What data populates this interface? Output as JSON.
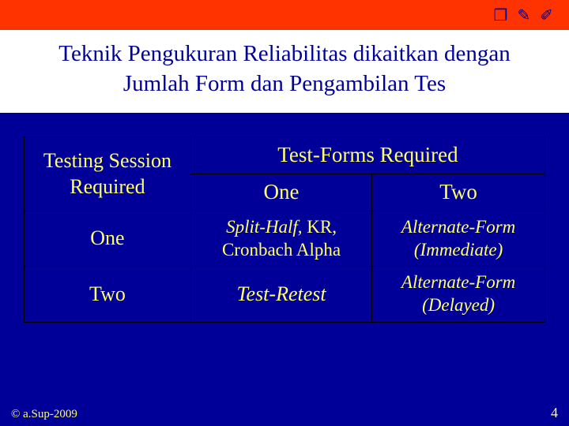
{
  "slide": {
    "title": "Teknik Pengukuran Reliabilitas dikaitkan dengan Jumlah Form dan Pengambilan Tes"
  },
  "topIcons": {
    "i1": "❒",
    "i2": "✎",
    "i3": "✐"
  },
  "table": {
    "rowHeader": "Testing Session Required",
    "colHeader": "Test-Forms Required",
    "subOne": "One",
    "subTwo": "Two",
    "rowOne": "One",
    "rowTwo": "Two",
    "cell_1_1a": "Split-Half,",
    "cell_1_1b": " KR, Cronbach Alpha",
    "cell_1_2": "Alternate-Form (Immediate)",
    "cell_2_1": "Test-Retest",
    "cell_2_2": "Alternate-Form (Delayed)"
  },
  "footer": {
    "copyright": "© a.Sup-2009",
    "page": "4"
  },
  "colors": {
    "background": "#000099",
    "accentBar": "#ff3300",
    "titleBg": "#ffffff",
    "titleText": "#000099",
    "tableText": "#ffff66",
    "border": "#000000"
  }
}
